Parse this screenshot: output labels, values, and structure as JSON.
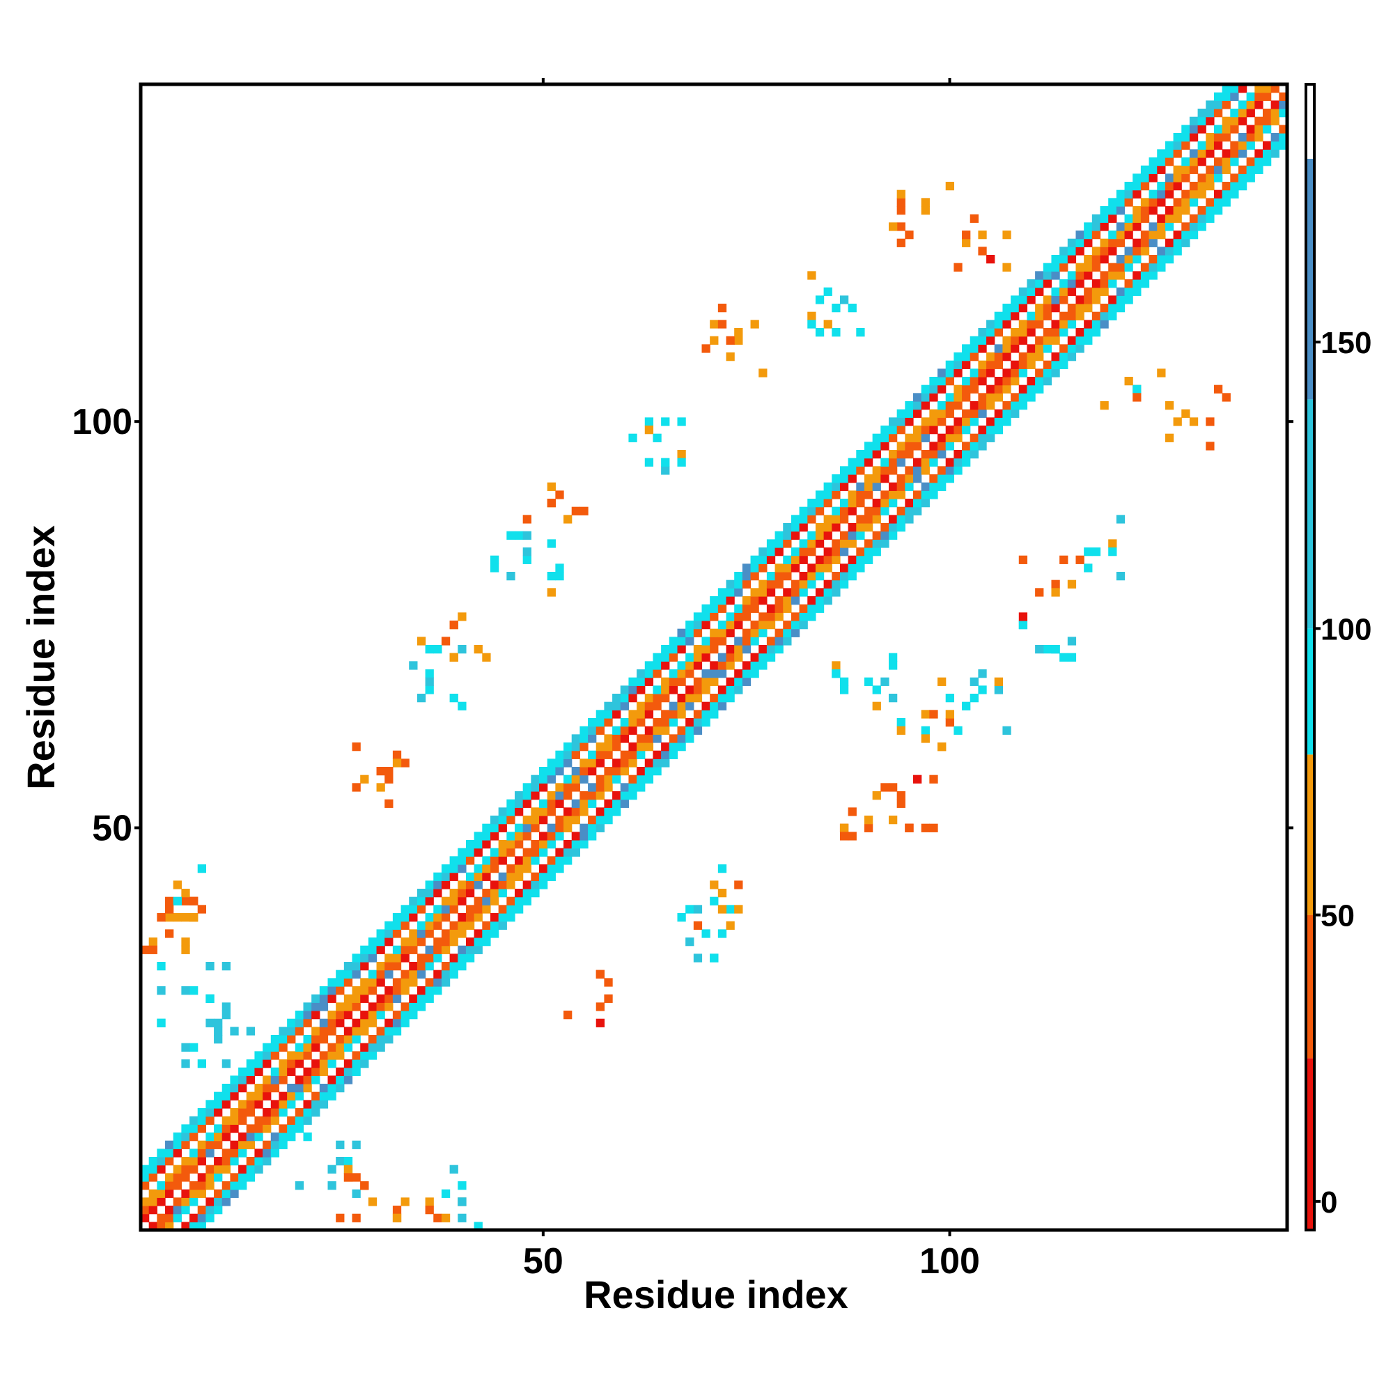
{
  "chart_data": {
    "type": "heatmap",
    "title": "",
    "xlabel": "Residue index",
    "ylabel": "Residue index",
    "n_residues": 141,
    "xlim": [
      1,
      141
    ],
    "ylim": [
      1,
      141
    ],
    "x_ticks": [
      50,
      100
    ],
    "y_ticks": [
      50,
      100
    ],
    "grid": false,
    "colorbar": {
      "position": "right",
      "ticks": [
        0,
        50,
        100,
        150
      ],
      "range": [
        -5,
        195
      ],
      "bands": [
        {
          "from": -5,
          "to": 25,
          "color": "#e8120c"
        },
        {
          "from": 25,
          "to": 50,
          "color": "#f35a0c"
        },
        {
          "from": 50,
          "to": 78,
          "color": "#f39a0c"
        },
        {
          "from": 78,
          "to": 100,
          "color": "#10e0ec"
        },
        {
          "from": 100,
          "to": 140,
          "color": "#2ec4dc"
        },
        {
          "from": 140,
          "to": 182,
          "color": "#4a8ec6"
        },
        {
          "from": 182,
          "to": 195,
          "color": "#ffffff"
        }
      ]
    },
    "colors": {
      "red": "#e8120c",
      "orange": "#f35a0c",
      "amber": "#f39a0c",
      "cyan": "#10e0ec",
      "teal": "#2ec4dc",
      "steel": "#4a8ec6"
    },
    "diagonal_band": {
      "half_width": 7,
      "pattern": "period-4 stripes"
    },
    "contact_clusters": [
      {
        "x": 57,
        "y": 28,
        "value": 30
      },
      {
        "x": 70,
        "y": 37,
        "value": 95
      },
      {
        "x": 72,
        "y": 42,
        "value": 60
      },
      {
        "x": 90,
        "y": 50,
        "value": 45
      },
      {
        "x": 94,
        "y": 53,
        "value": 30
      },
      {
        "x": 97,
        "y": 64,
        "value": 65
      },
      {
        "x": 103,
        "y": 66,
        "value": 90
      },
      {
        "x": 90,
        "y": 68,
        "value": 90
      },
      {
        "x": 112,
        "y": 72,
        "value": 95
      },
      {
        "x": 113,
        "y": 80,
        "value": 40
      },
      {
        "x": 118,
        "y": 84,
        "value": 90
      },
      {
        "x": 130,
        "y": 100,
        "value": 60
      },
      {
        "x": 123,
        "y": 104,
        "value": 60
      },
      {
        "x": 30,
        "y": 57,
        "value": 40
      },
      {
        "x": 36,
        "y": 69,
        "value": 95
      },
      {
        "x": 42,
        "y": 72,
        "value": 55
      },
      {
        "x": 48,
        "y": 83,
        "value": 95
      },
      {
        "x": 52,
        "y": 91,
        "value": 40
      },
      {
        "x": 64,
        "y": 98,
        "value": 90
      },
      {
        "x": 74,
        "y": 110,
        "value": 60
      },
      {
        "x": 86,
        "y": 114,
        "value": 90
      },
      {
        "x": 97,
        "y": 126,
        "value": 55
      },
      {
        "x": 104,
        "y": 121,
        "value": 40
      },
      {
        "x": 7,
        "y": 30,
        "value": 95
      },
      {
        "x": 10,
        "y": 24,
        "value": 110
      },
      {
        "x": 4,
        "y": 37,
        "value": 45
      },
      {
        "x": 6,
        "y": 42,
        "value": 60
      },
      {
        "x": 24,
        "y": 8,
        "value": 110
      },
      {
        "x": 29,
        "y": 4,
        "value": 55
      },
      {
        "x": 37,
        "y": 2,
        "value": 40
      },
      {
        "x": 40,
        "y": 4,
        "value": 95
      }
    ]
  }
}
